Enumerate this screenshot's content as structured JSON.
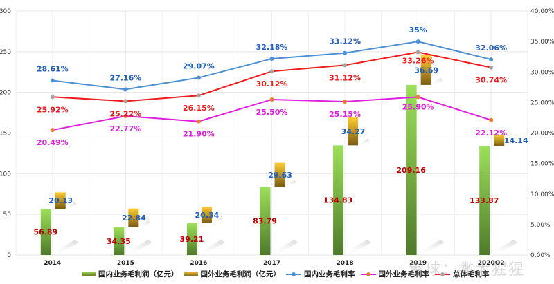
{
  "chart_data": {
    "type": "bar",
    "title": "",
    "categories": [
      "2014",
      "2015",
      "2016",
      "2017",
      "2018",
      "2019",
      "2020Q2"
    ],
    "left_axis": {
      "min": 0,
      "max": 300,
      "step": 50,
      "ticks": [
        "0",
        "50",
        "100",
        "150",
        "200",
        "250",
        "300"
      ]
    },
    "right_axis": {
      "min": 0,
      "max": 40,
      "step": 5,
      "ticks": [
        "0.00%",
        "5.00%",
        "10.00%",
        "15.00%",
        "20.00%",
        "25.00%",
        "30.00%",
        "35.00%",
        "40.00%"
      ]
    },
    "grid": true,
    "legend_position": "bottom",
    "bar_series": [
      {
        "name": "国内业务毛利润（亿元）",
        "axis": "left",
        "color": "#8fd14f",
        "values": [
          56.89,
          34.35,
          39.21,
          83.79,
          134.83,
          209.16,
          133.87
        ],
        "labels": [
          "56.89",
          "34.35",
          "39.21",
          "83.79",
          "134.83",
          "209.16",
          "133.87"
        ],
        "label_color": "#c00000"
      },
      {
        "name": "国外业务毛利润（亿元）",
        "axis": "left",
        "color": "#f2c12e",
        "stacked_on_previous": true,
        "values": [
          20.13,
          22.84,
          20.34,
          29.63,
          34.27,
          36.69,
          14.14
        ],
        "labels": [
          "20.13",
          "22.84",
          "20.34",
          "29.63",
          "34.27",
          "36.69",
          "14.14"
        ],
        "label_color": "#1f5fbf"
      }
    ],
    "line_series": [
      {
        "name": "国内业务毛利率",
        "axis": "right",
        "color": "#4e90d4",
        "marker_color": "#4e90d4",
        "label_color": "#1f5fbf",
        "values": [
          28.61,
          27.16,
          29.07,
          32.18,
          33.12,
          35.0,
          32.06
        ],
        "labels": [
          "28.61%",
          "27.16%",
          "29.07%",
          "32.18%",
          "33.12%",
          "35%",
          "32.06%"
        ]
      },
      {
        "name": "国外业务毛利率",
        "axis": "right",
        "color": "#e020e0",
        "marker_color": "#ef7d31",
        "label_color": "#e020e0",
        "values": [
          20.49,
          22.77,
          21.9,
          25.5,
          25.15,
          25.9,
          22.12
        ],
        "labels": [
          "20.49%",
          "22.77%",
          "21.90%",
          "25.50%",
          "25.15%",
          "25.90%",
          "22.12%"
        ]
      },
      {
        "name": "总体毛利率",
        "axis": "right",
        "color": "#ee1c1c",
        "marker_color": "#a5a5a5",
        "label_color": "#ee1c1c",
        "values": [
          25.92,
          25.22,
          26.15,
          30.12,
          31.12,
          33.26,
          30.74
        ],
        "labels": [
          "25.92%",
          "25.22%",
          "26.15%",
          "30.12%",
          "31.12%",
          "33.26%",
          "30.74%"
        ]
      }
    ]
  },
  "legend": [
    {
      "label": "国内业务毛利润（亿元）",
      "kind": "bar",
      "color": "#8fd14f"
    },
    {
      "label": "国外业务毛利润（亿元）",
      "kind": "bar",
      "color": "#e8b52a"
    },
    {
      "label": "国内业务毛利率",
      "kind": "line",
      "color": "#4e90d4",
      "marker": "#4e90d4"
    },
    {
      "label": "国外业务毛利率",
      "kind": "line",
      "color": "#e020e0",
      "marker": "#ef7d31"
    },
    {
      "label": "总体毛利率",
      "kind": "line",
      "color": "#ee1c1c",
      "marker": "#a5a5a5"
    }
  ],
  "watermark": "雪球：撇大猩猩"
}
